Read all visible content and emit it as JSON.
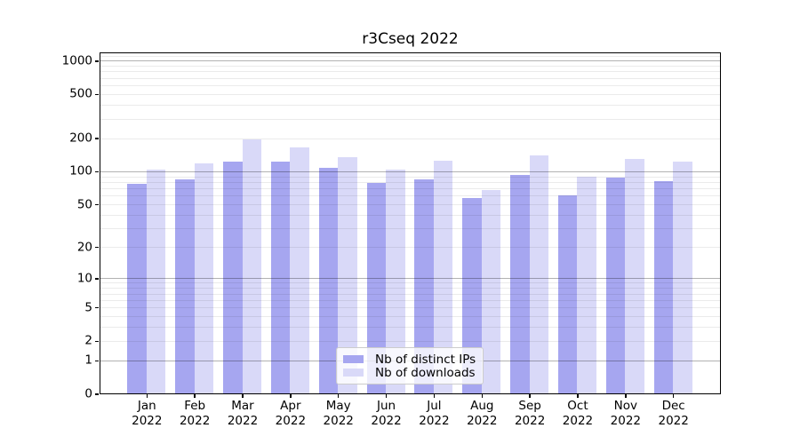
{
  "chart_data": {
    "type": "bar",
    "title": "r3Cseq 2022",
    "categories": [
      "Jan",
      "Feb",
      "Mar",
      "Apr",
      "May",
      "Jun",
      "Jul",
      "Aug",
      "Sep",
      "Oct",
      "Nov",
      "Dec"
    ],
    "x_year": "2022",
    "series": [
      {
        "name": "Nb of distinct IPs",
        "color": "#a6a6f0",
        "values": [
          77,
          85,
          122,
          122,
          108,
          78,
          85,
          57,
          93,
          60,
          87,
          81
        ]
      },
      {
        "name": "Nb of downloads",
        "color": "#d9d9f8",
        "values": [
          104,
          118,
          193,
          166,
          134,
          104,
          124,
          68,
          140,
          90,
          129,
          122
        ]
      }
    ],
    "yscale": "symlog",
    "yticks": [
      0,
      1,
      2,
      5,
      10,
      20,
      50,
      100,
      200,
      500,
      1000
    ],
    "ylim": [
      0,
      1200
    ],
    "grid": true,
    "legend_position": "lower center",
    "colors": {
      "major_grid": "#b3b3b3",
      "minor_grid": "#e9e9e9",
      "axis": "#000000"
    }
  }
}
